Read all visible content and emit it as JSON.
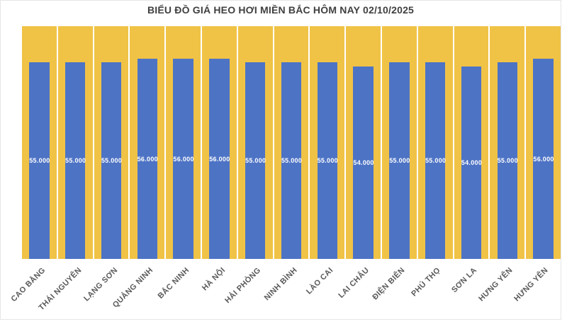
{
  "header": {
    "title": "BIỂU ĐỒ GIÁ HEO HƠI MIỀN BẮC HÔM NAY 02/10/2025"
  },
  "colors": {
    "bar": "#4d73c5",
    "plot_panel_background": "#f0c346",
    "panel_separator": "#ffffff",
    "title_text": "#3f3f3f",
    "axis_label_text": "#595959",
    "data_label_text": "#ffffff",
    "frame_border": "#e6e6e6",
    "page_background": "#ffffff"
  },
  "chart_data": {
    "type": "bar",
    "title": "BIỂU ĐỒ GIÁ HEO HƠI MIỀN BẮC HÔM NAY 02/10/2025",
    "categories": [
      "CAO BẰNG",
      "THÁI NGUYÊN",
      "LẠNG SƠN",
      "QUẢNG NINH",
      "BẮC NINH",
      "HÀ NỘI",
      "HẢI PHÒNG",
      "NINH BÌNH",
      "LÀO CAI",
      "LAI CHÂU",
      "ĐIỆN BIÊN",
      "PHÚ THỌ",
      "SƠN LA",
      "HƯNG YÊN",
      "HƯNG YÊN"
    ],
    "values": [
      55000,
      55000,
      55000,
      56000,
      56000,
      56000,
      55000,
      55000,
      55000,
      54000,
      55000,
      55000,
      54000,
      55000,
      56000
    ],
    "data_labels": [
      "55.000",
      "55.000",
      "55.000",
      "56.000",
      "56.000",
      "56.000",
      "55.000",
      "55.000",
      "55.000",
      "54.000",
      "55.000",
      "55.000",
      "54.000",
      "55.000",
      "56.000"
    ],
    "data_label_position": "inside-center",
    "category_label_rotation_deg": 45,
    "legend": "none",
    "y_axis": "hidden",
    "xlabel": "",
    "ylabel": ""
  }
}
